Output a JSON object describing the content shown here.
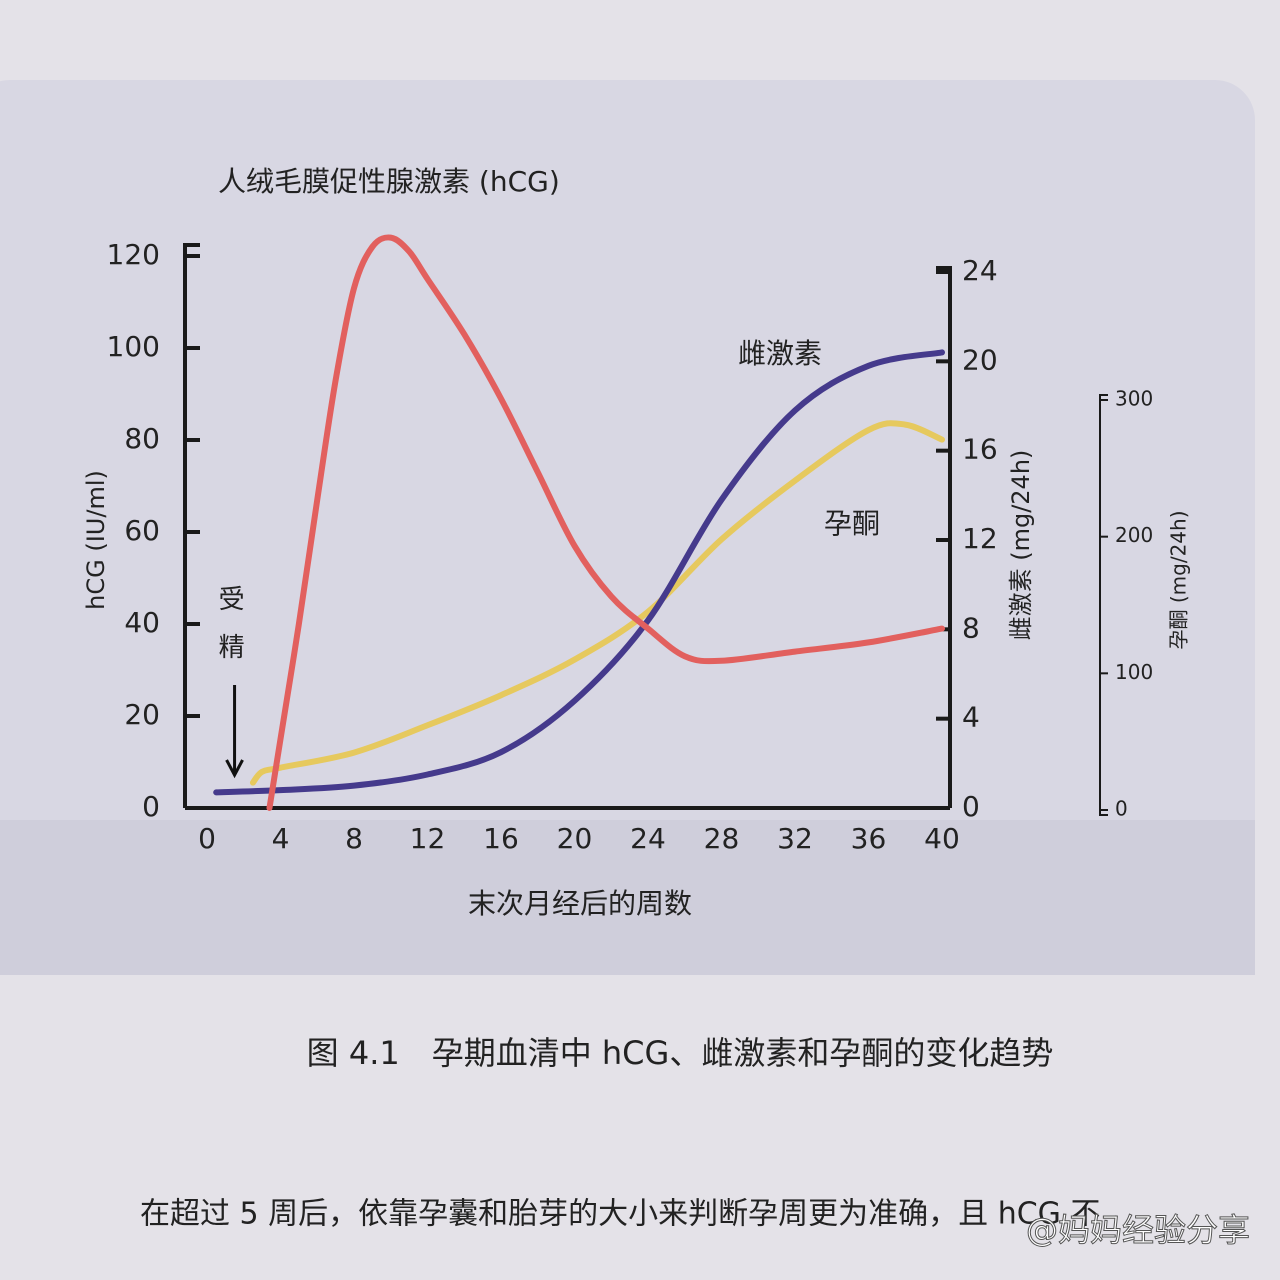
{
  "chart_data": {
    "type": "line",
    "title": "人绒毛膜促性腺激素 (hCG)",
    "x_label": "末次月经后的周数",
    "y_label": "hCG (IU/ml)",
    "y2_label": "雌激素 (mg/24h)",
    "y3_label": "孕酮 (mg/24h)",
    "xlim": [
      0,
      40
    ],
    "xticks": [
      0,
      4,
      8,
      12,
      16,
      20,
      24,
      28,
      32,
      36,
      40
    ],
    "ylim": [
      0,
      120
    ],
    "yticks": [
      0,
      20,
      40,
      60,
      80,
      100,
      120
    ],
    "y2lim": [
      0,
      24
    ],
    "y2ticks": [
      0,
      4,
      8,
      12,
      16,
      20,
      24
    ],
    "y3lim": [
      0,
      300
    ],
    "y3ticks": [
      0,
      100,
      200,
      300
    ],
    "grid": false,
    "annotation": {
      "text": "受精",
      "x": 1.5
    },
    "series": [
      {
        "color": "#e2605e",
        "x": [
          3.4,
          4,
          5,
          6,
          7,
          8,
          9,
          10,
          11,
          12,
          14,
          16,
          18,
          20,
          22,
          24,
          26,
          28,
          32,
          36,
          40
        ],
        "values": [
          0,
          15,
          40,
          67,
          93,
          113,
          122,
          124,
          121,
          115,
          103,
          89,
          73,
          57,
          46,
          39,
          33,
          32,
          34,
          36,
          39
        ]
      },
      {
        "name": "雌激素",
        "axis": "y2",
        "color": "#453a8c",
        "x": [
          0.5,
          4,
          8,
          12,
          16,
          20,
          24,
          28,
          32,
          36,
          40
        ],
        "values": [
          0.7,
          0.8,
          1.0,
          1.5,
          2.5,
          4.8,
          8.4,
          13.8,
          17.8,
          19.8,
          20.4
        ]
      },
      {
        "name": "孕酮",
        "axis": "y3",
        "color": "#e6c95e",
        "x": [
          2.5,
          3,
          4,
          8,
          12,
          16,
          20,
          24,
          28,
          32,
          36,
          38,
          40
        ],
        "values": [
          20,
          28,
          31,
          42,
          62,
          84,
          110,
          145,
          198,
          241,
          278,
          282,
          271
        ]
      }
    ]
  },
  "caption": "图 4.1　孕期血清中 hCG、雌激素和孕酮的变化趋势",
  "body_text": "在超过 5 周后，依靠孕囊和胎芽的大小来判断孕周更为准确，且 hCG 不",
  "watermark": "@妈妈经验分享"
}
